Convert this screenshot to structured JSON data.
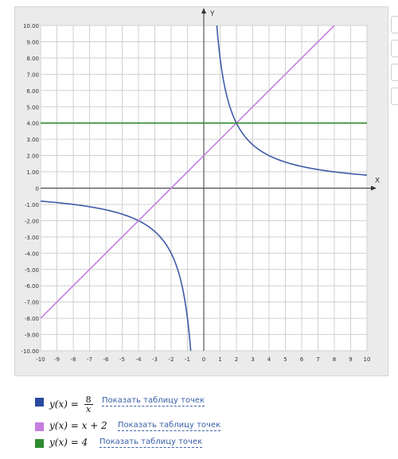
{
  "chart_data": {
    "type": "line",
    "xlabel": "X",
    "ylabel": "Y",
    "xlim": [
      -10,
      10
    ],
    "ylim": [
      -10,
      10
    ],
    "grid": true,
    "x_ticks": [
      "-10",
      "-9",
      "-8",
      "-7",
      "-6",
      "-5",
      "-4",
      "-3",
      "-2",
      "-1",
      "0",
      "1",
      "2",
      "3",
      "4",
      "5",
      "6",
      "7",
      "8",
      "9",
      "10"
    ],
    "y_ticks": [
      "10.00",
      "9.00",
      "8.00",
      "7.00",
      "6.00",
      "5.00",
      "4.00",
      "3.00",
      "2.00",
      "1.00",
      "0",
      "-1.00",
      "-2.00",
      "-3.00",
      "-4.00",
      "-5.00",
      "-6.00",
      "-7.00",
      "-8.00",
      "-9.00",
      "-10.00"
    ],
    "series": [
      {
        "name": "y(x) = 8/x",
        "function": "8/x",
        "color": "#3f5ba8",
        "points": [
          [
            -10,
            -0.8
          ],
          [
            -8,
            -1
          ],
          [
            -6,
            -1.33
          ],
          [
            -4,
            -2
          ],
          [
            -3,
            -2.67
          ],
          [
            -2,
            -4
          ],
          [
            -1.5,
            -5.33
          ],
          [
            -1,
            -8
          ],
          [
            -0.8,
            -10
          ],
          [
            0.8,
            10
          ],
          [
            1,
            8
          ],
          [
            1.5,
            5.33
          ],
          [
            2,
            4
          ],
          [
            3,
            2.67
          ],
          [
            4,
            2
          ],
          [
            6,
            1.33
          ],
          [
            8,
            1
          ],
          [
            10,
            0.8
          ]
        ]
      },
      {
        "name": "y(x) = x + 2",
        "function": "x+2",
        "color": "#c57ee0",
        "points": [
          [
            -10,
            -8
          ],
          [
            -4,
            -2
          ],
          [
            -2,
            0
          ],
          [
            0,
            2
          ],
          [
            2,
            4
          ],
          [
            8,
            10
          ]
        ]
      },
      {
        "name": "y(x) = 4",
        "function": "4",
        "color": "#2e8b2e",
        "points": [
          [
            -10,
            4
          ],
          [
            10,
            4
          ]
        ]
      }
    ]
  },
  "legend": [
    {
      "lhs": "y(x) =",
      "num": "8",
      "den": "x",
      "rhs": "",
      "color": "#2a4aa0",
      "link": "Показать таблицу точек"
    },
    {
      "lhs": "y(x) =",
      "num": "",
      "den": "",
      "rhs": "x + 2",
      "color": "#c57ee0",
      "link": "Показать таблицу точек"
    },
    {
      "lhs": "y(x) =",
      "num": "",
      "den": "",
      "rhs": "4",
      "color": "#2e8b2e",
      "link": "Показать таблицу точек"
    }
  ]
}
